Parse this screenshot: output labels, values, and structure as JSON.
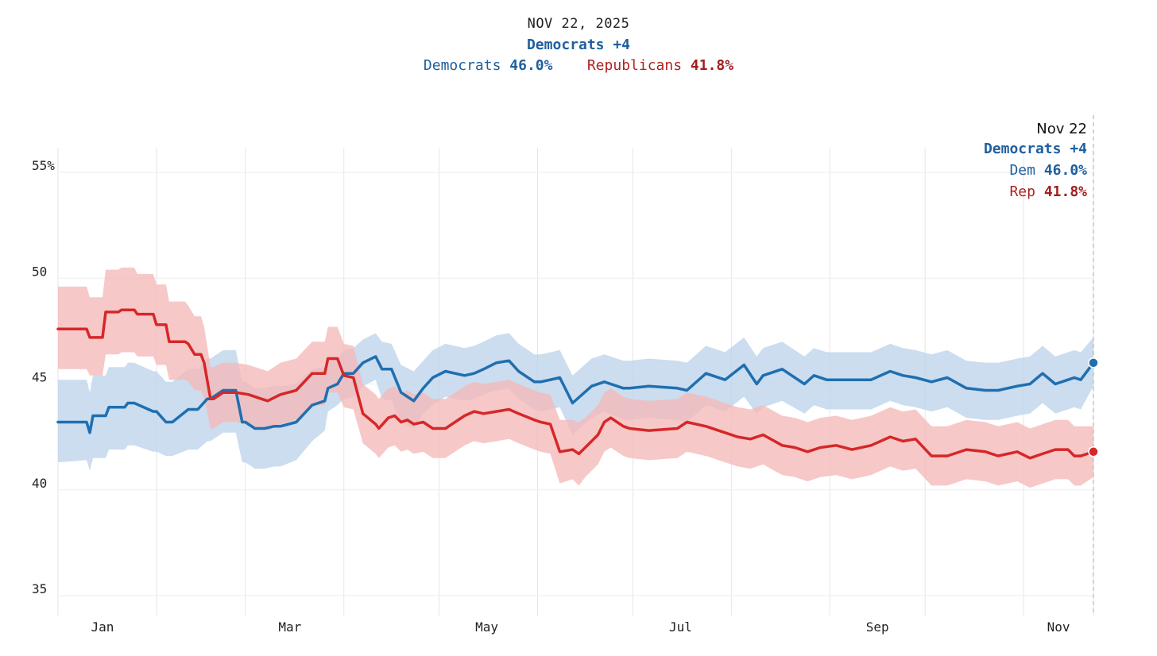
{
  "header": {
    "date": "NOV 22, 2025",
    "lead": "Democrats +4",
    "dem_label": "Democrats",
    "dem_value": "46.0%",
    "rep_label": "Republicans",
    "rep_value": "41.8%"
  },
  "annotation": {
    "date": "Nov 22",
    "lead": "Democrats +4",
    "dem_label": "Dem",
    "dem_value": "46.0%",
    "rep_label": "Rep",
    "rep_value": "41.8%"
  },
  "colors": {
    "dem": "#1f6fb0",
    "dem_band": "#bcd4ea",
    "rep": "#d62728",
    "rep_band": "#f5b9b9",
    "grid": "#e6e6e6"
  },
  "chart_data": {
    "type": "line",
    "title": "Democrats +4",
    "xlabel": "",
    "ylabel": "",
    "ylim": [
      34,
      56
    ],
    "xlim": [
      0,
      326
    ],
    "x_unit": "days since Jan 1, 2025",
    "y_ticks": [
      {
        "value": 55,
        "label": "55%"
      },
      {
        "value": 50,
        "label": "50"
      },
      {
        "value": 45,
        "label": "45"
      },
      {
        "value": 40,
        "label": "40"
      },
      {
        "value": 35,
        "label": "35"
      }
    ],
    "x_ticks": [
      {
        "day": 14,
        "label": "Jan"
      },
      {
        "day": 73,
        "label": "Mar"
      },
      {
        "day": 135,
        "label": "May"
      },
      {
        "day": 196,
        "label": "Jul"
      },
      {
        "day": 258,
        "label": "Sep"
      },
      {
        "day": 315,
        "label": "Nov"
      }
    ],
    "grid_days": [
      0,
      31,
      59,
      90,
      120,
      151,
      181,
      212,
      243,
      273,
      304,
      326
    ],
    "series": [
      {
        "name": "Democrats",
        "key": "dem",
        "x": [
          0,
          9,
          10,
          11,
          15,
          16,
          21,
          22,
          24,
          30,
          31,
          34,
          36,
          41,
          44,
          47,
          48,
          52,
          56,
          58,
          59,
          62,
          65,
          68,
          70,
          75,
          80,
          84,
          85,
          88,
          90,
          93,
          96,
          100,
          102,
          105,
          108,
          112,
          115,
          118,
          122,
          128,
          131,
          134,
          138,
          142,
          145,
          150,
          152,
          158,
          162,
          168,
          172,
          178,
          180,
          186,
          195,
          198,
          204,
          210,
          216,
          220,
          222,
          228,
          235,
          238,
          242,
          250,
          256,
          262,
          266,
          270,
          275,
          280,
          286,
          292,
          296,
          302,
          306,
          310,
          314,
          318,
          320,
          322,
          326
        ],
        "values": [
          43.2,
          43.2,
          42.7,
          43.5,
          43.5,
          43.9,
          43.9,
          44.1,
          44.1,
          43.7,
          43.7,
          43.2,
          43.2,
          43.8,
          43.8,
          44.3,
          44.3,
          44.7,
          44.7,
          43.2,
          43.2,
          42.9,
          42.9,
          43.0,
          43.0,
          43.2,
          44.0,
          44.2,
          44.8,
          45.0,
          45.5,
          45.5,
          46.0,
          46.3,
          45.7,
          45.7,
          44.6,
          44.2,
          44.8,
          45.3,
          45.6,
          45.4,
          45.5,
          45.7,
          46.0,
          46.1,
          45.6,
          45.1,
          45.1,
          45.3,
          44.1,
          44.9,
          45.1,
          44.8,
          44.8,
          44.9,
          44.8,
          44.7,
          45.5,
          45.2,
          45.9,
          45.0,
          45.4,
          45.7,
          45.0,
          45.4,
          45.2,
          45.2,
          45.2,
          45.6,
          45.4,
          45.3,
          45.1,
          45.3,
          44.8,
          44.7,
          44.7,
          44.9,
          45.0,
          45.5,
          45.0,
          45.2,
          45.3,
          45.2,
          46.0
        ],
        "lower": [
          41.3,
          41.4,
          40.9,
          41.5,
          41.5,
          41.9,
          41.9,
          42.1,
          42.1,
          41.8,
          41.8,
          41.6,
          41.6,
          41.9,
          41.9,
          42.3,
          42.3,
          42.7,
          42.7,
          41.3,
          41.3,
          41.0,
          41.0,
          41.1,
          41.1,
          41.4,
          42.3,
          42.8,
          43.7,
          44.0,
          44.3,
          44.4,
          44.9,
          45.2,
          44.3,
          44.2,
          43.2,
          42.9,
          43.6,
          44.0,
          44.4,
          44.2,
          44.3,
          44.5,
          44.7,
          44.8,
          44.3,
          43.8,
          43.7,
          43.9,
          42.6,
          43.4,
          43.7,
          43.3,
          43.3,
          43.4,
          43.3,
          43.2,
          44.0,
          43.7,
          44.4,
          43.6,
          43.9,
          44.2,
          43.6,
          44.0,
          43.8,
          43.8,
          43.8,
          44.2,
          44.0,
          43.9,
          43.7,
          43.9,
          43.4,
          43.3,
          43.3,
          43.5,
          43.6,
          44.1,
          43.6,
          43.8,
          43.9,
          43.8,
          44.9
        ],
        "upper": [
          45.2,
          45.2,
          44.6,
          45.4,
          45.4,
          45.8,
          45.8,
          46.0,
          46.0,
          45.6,
          45.6,
          45.1,
          45.1,
          45.7,
          45.7,
          46.2,
          46.2,
          46.6,
          46.6,
          45.1,
          45.1,
          44.8,
          44.8,
          44.9,
          44.9,
          45.0,
          45.7,
          45.8,
          46.0,
          46.2,
          46.6,
          46.7,
          47.1,
          47.4,
          47.0,
          46.9,
          45.9,
          45.6,
          46.1,
          46.6,
          46.9,
          46.7,
          46.8,
          47.0,
          47.3,
          47.4,
          46.9,
          46.4,
          46.4,
          46.6,
          45.4,
          46.2,
          46.4,
          46.1,
          46.1,
          46.2,
          46.1,
          46.0,
          46.8,
          46.5,
          47.2,
          46.3,
          46.7,
          47.0,
          46.3,
          46.7,
          46.5,
          46.5,
          46.5,
          46.9,
          46.7,
          46.6,
          46.4,
          46.6,
          46.1,
          46.0,
          46.0,
          46.2,
          46.3,
          46.8,
          46.3,
          46.5,
          46.6,
          46.5,
          47.2
        ]
      },
      {
        "name": "Republicans",
        "key": "rep",
        "x": [
          0,
          9,
          10,
          11,
          14,
          15,
          19,
          20,
          24,
          25,
          30,
          31,
          34,
          35,
          40,
          41,
          43,
          45,
          46,
          48,
          49,
          52,
          56,
          60,
          64,
          66,
          70,
          75,
          80,
          84,
          85,
          88,
          90,
          93,
          96,
          100,
          101,
          104,
          106,
          108,
          110,
          112,
          115,
          118,
          122,
          128,
          131,
          134,
          138,
          142,
          145,
          150,
          152,
          155,
          158,
          162,
          164,
          166,
          170,
          172,
          174,
          178,
          180,
          186,
          195,
          198,
          204,
          210,
          214,
          218,
          222,
          228,
          232,
          236,
          240,
          245,
          250,
          256,
          262,
          266,
          270,
          275,
          280,
          286,
          292,
          296,
          302,
          306,
          310,
          314,
          318,
          320,
          322,
          326
        ],
        "values": [
          47.6,
          47.6,
          47.2,
          47.2,
          47.2,
          48.4,
          48.4,
          48.5,
          48.5,
          48.3,
          48.3,
          47.8,
          47.8,
          47.0,
          47.0,
          46.9,
          46.4,
          46.4,
          46.0,
          44.3,
          44.3,
          44.6,
          44.6,
          44.5,
          44.3,
          44.2,
          44.5,
          44.7,
          45.5,
          45.5,
          46.2,
          46.2,
          45.4,
          45.3,
          43.6,
          43.1,
          42.9,
          43.4,
          43.5,
          43.2,
          43.3,
          43.1,
          43.2,
          42.9,
          42.9,
          43.5,
          43.7,
          43.6,
          43.7,
          43.8,
          43.6,
          43.3,
          43.2,
          43.1,
          41.8,
          41.9,
          41.7,
          42.0,
          42.6,
          43.2,
          43.4,
          43.0,
          42.9,
          42.8,
          42.9,
          43.2,
          43.0,
          42.7,
          42.5,
          42.4,
          42.6,
          42.1,
          42.0,
          41.8,
          42.0,
          42.1,
          41.9,
          42.1,
          42.5,
          42.3,
          42.4,
          41.6,
          41.6,
          41.9,
          41.8,
          41.6,
          41.8,
          41.5,
          41.7,
          41.9,
          41.9,
          41.6,
          41.6,
          41.8
        ],
        "lower": [
          45.7,
          45.7,
          45.4,
          45.4,
          45.4,
          46.4,
          46.4,
          46.5,
          46.5,
          46.3,
          46.3,
          45.9,
          45.9,
          45.2,
          45.2,
          45.1,
          44.7,
          44.7,
          44.3,
          42.9,
          42.9,
          43.2,
          43.2,
          43.1,
          42.9,
          42.8,
          43.1,
          43.3,
          44.0,
          44.0,
          44.6,
          44.6,
          43.9,
          43.8,
          42.2,
          41.7,
          41.5,
          42.0,
          42.1,
          41.8,
          41.9,
          41.7,
          41.8,
          41.5,
          41.5,
          42.1,
          42.3,
          42.2,
          42.3,
          42.4,
          42.2,
          41.9,
          41.8,
          41.7,
          40.3,
          40.5,
          40.2,
          40.6,
          41.2,
          41.8,
          42.0,
          41.6,
          41.5,
          41.4,
          41.5,
          41.8,
          41.6,
          41.3,
          41.1,
          41.0,
          41.2,
          40.7,
          40.6,
          40.4,
          40.6,
          40.7,
          40.5,
          40.7,
          41.1,
          40.9,
          41.0,
          40.2,
          40.2,
          40.5,
          40.4,
          40.2,
          40.4,
          40.1,
          40.3,
          40.5,
          40.5,
          40.2,
          40.2,
          40.6
        ],
        "upper": [
          49.6,
          49.6,
          49.1,
          49.1,
          49.1,
          50.4,
          50.4,
          50.5,
          50.5,
          50.2,
          50.2,
          49.7,
          49.7,
          48.9,
          48.9,
          48.7,
          48.2,
          48.2,
          47.7,
          45.8,
          45.8,
          46.0,
          46.0,
          45.9,
          45.7,
          45.6,
          46.0,
          46.2,
          47.0,
          47.0,
          47.7,
          47.7,
          46.9,
          46.8,
          45.0,
          44.5,
          44.3,
          44.8,
          44.9,
          44.6,
          44.7,
          44.5,
          44.6,
          44.3,
          44.3,
          44.9,
          45.1,
          45.0,
          45.1,
          45.2,
          45.0,
          44.7,
          44.6,
          44.5,
          43.3,
          43.3,
          43.2,
          43.4,
          44.0,
          44.6,
          44.8,
          44.4,
          44.3,
          44.2,
          44.3,
          44.6,
          44.4,
          44.1,
          43.9,
          43.8,
          44.0,
          43.5,
          43.4,
          43.2,
          43.4,
          43.5,
          43.3,
          43.5,
          43.9,
          43.7,
          43.8,
          43.0,
          43.0,
          43.3,
          43.2,
          43.0,
          43.2,
          42.9,
          43.1,
          43.3,
          43.3,
          43.0,
          43.0,
          43.0
        ]
      }
    ]
  }
}
